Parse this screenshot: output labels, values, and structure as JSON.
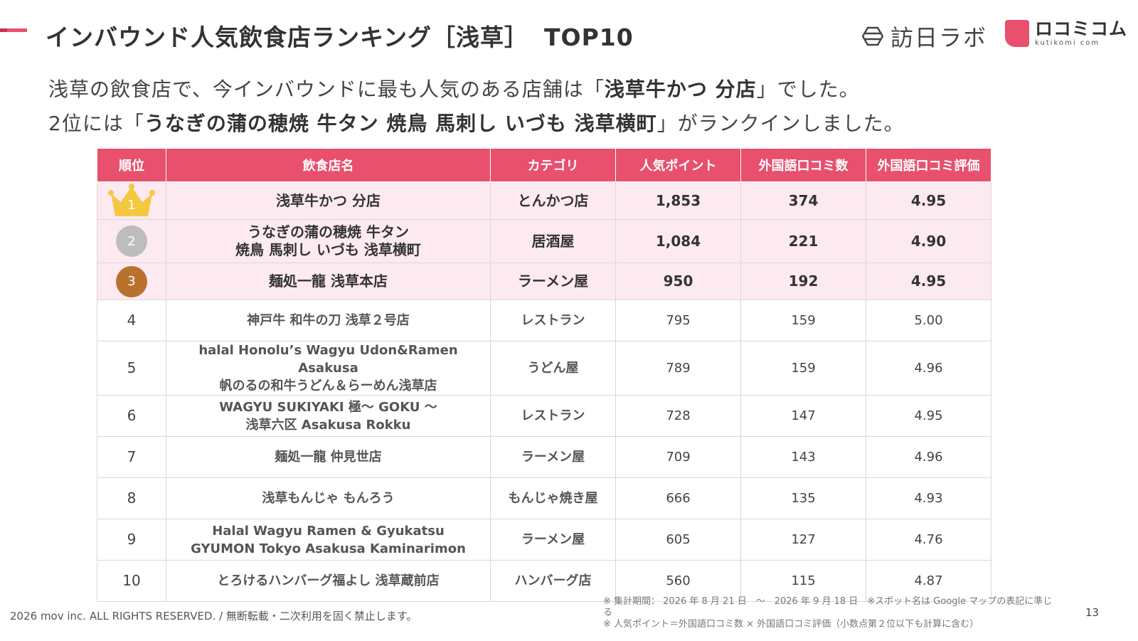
{
  "header": {
    "title": "インバウンド人気飲食店ランキング［浅草］",
    "title_top": "TOP10",
    "logo1_text": "訪日ラボ",
    "logo2_text": "ロコミコム",
    "logo2_sub": "kutikomi com"
  },
  "lead": {
    "line1_pre": "浅草の飲食店で、今インバウンドに最も人気のある店舗は「",
    "line1_bold": "浅草牛かつ 分店",
    "line1_post": "」でした。",
    "line2_pre": "2位には「",
    "line2_bold": "うなぎの蒲の穂焼 牛タン 焼鳥 馬刺し いづも 浅草横町",
    "line2_post": "」がランクインしました。"
  },
  "table": {
    "headers": [
      "順位",
      "飲食店名",
      "カテゴリ",
      "人気ポイント",
      "外国語口コミ数",
      "外国語口コミ評価"
    ],
    "rows": [
      {
        "rank": "1",
        "name1": "浅草牛かつ 分店",
        "name2": "",
        "category": "とんかつ店",
        "points": "1,853",
        "reviews": "374",
        "rating": "4.95"
      },
      {
        "rank": "2",
        "name1": "うなぎの蒲の穂焼 牛タン",
        "name2": "焼鳥 馬刺し いづも 浅草横町",
        "category": "居酒屋",
        "points": "1,084",
        "reviews": "221",
        "rating": "4.90"
      },
      {
        "rank": "3",
        "name1": "麺処一龍 浅草本店",
        "name2": "",
        "category": "ラーメン屋",
        "points": "950",
        "reviews": "192",
        "rating": "4.95"
      },
      {
        "rank": "4",
        "name1": "神戸牛 和牛の刀 浅草２号店",
        "name2": "",
        "category": "レストラン",
        "points": "795",
        "reviews": "159",
        "rating": "5.00"
      },
      {
        "rank": "5",
        "name1": "halal Honolu’s Wagyu Udon&Ramen Asakusa",
        "name2": "帆のるの和牛うどん＆らーめん浅草店",
        "category": "うどん屋",
        "points": "789",
        "reviews": "159",
        "rating": "4.96"
      },
      {
        "rank": "6",
        "name1": "WAGYU SUKIYAKI 極〜 GOKU 〜",
        "name2": "浅草六区 Asakusa Rokku",
        "category": "レストラン",
        "points": "728",
        "reviews": "147",
        "rating": "4.95"
      },
      {
        "rank": "7",
        "name1": "麺処一龍 仲見世店",
        "name2": "",
        "category": "ラーメン屋",
        "points": "709",
        "reviews": "143",
        "rating": "4.96"
      },
      {
        "rank": "8",
        "name1": "浅草もんじゃ もんろう",
        "name2": "",
        "category": "もんじゃ焼き屋",
        "points": "666",
        "reviews": "135",
        "rating": "4.93"
      },
      {
        "rank": "9",
        "name1": "Halal Wagyu Ramen & Gyukatsu",
        "name2": "GYUMON Tokyo Asakusa Kaminarimon",
        "category": "ラーメン屋",
        "points": "605",
        "reviews": "127",
        "rating": "4.76"
      },
      {
        "rank": "10",
        "name1": "とろけるハンバーグ福よし 浅草蔵前店",
        "name2": "",
        "category": "ハンバーグ店",
        "points": "560",
        "reviews": "115",
        "rating": "4.87"
      }
    ]
  },
  "footer": {
    "copyright": "2026 mov inc. ALL RIGHTS RESERVED. /  無断転載・二次利用を固く禁止します。",
    "note1": "※ 集計期間： 2026 年 8 月 21 日　～　2026 年 9 月 18 日　※スポット名は Google マップの表記に準じる",
    "note2": "※ 人気ポイント＝外国語口コミ数 × 外国語口コミ評価（小数点第２位以下も計算に含む）",
    "page_number": "13"
  },
  "colors": {
    "accent": "#e8506e",
    "top3_row_bg": "#fdeaf0",
    "gold": "#f5c842",
    "silver": "#bdbdbd",
    "bronze": "#b8722e"
  }
}
